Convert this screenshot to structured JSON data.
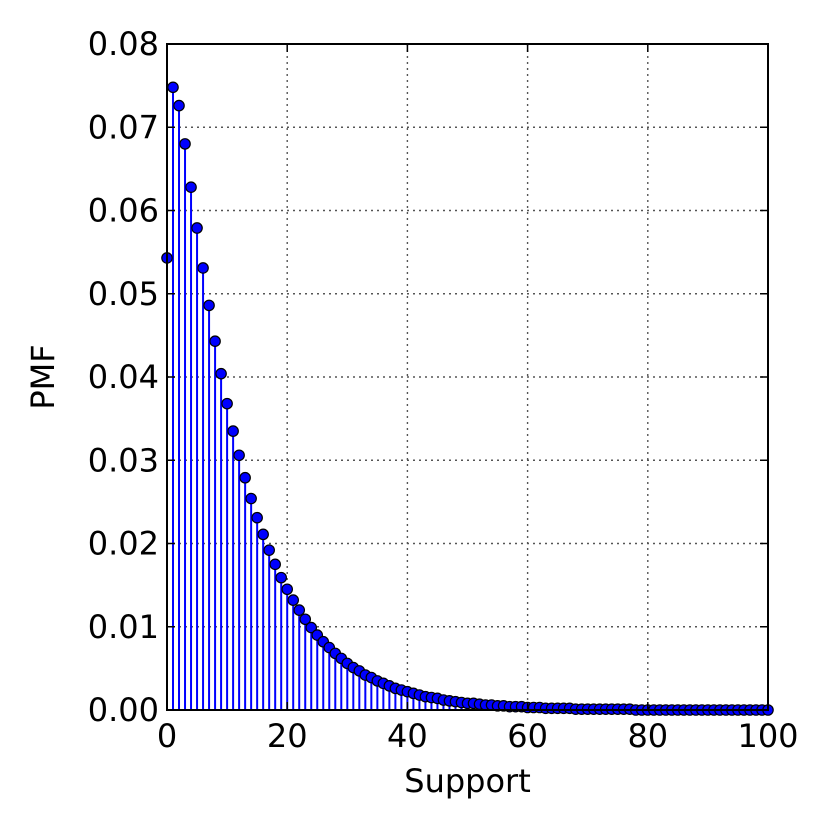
{
  "chart_data": {
    "type": "stem",
    "title": "",
    "xlabel": "Support",
    "ylabel": "PMF",
    "xlim": [
      0,
      100
    ],
    "ylim": [
      0,
      0.08
    ],
    "xticks": [
      "0",
      "20",
      "40",
      "60",
      "80",
      "100"
    ],
    "yticks": [
      "0.00",
      "0.01",
      "0.02",
      "0.03",
      "0.04",
      "0.05",
      "0.06",
      "0.07",
      "0.08"
    ],
    "grid": true,
    "legend": "none",
    "color": "#0000ff",
    "x": [
      0,
      1,
      2,
      3,
      4,
      5,
      6,
      7,
      8,
      9,
      10,
      11,
      12,
      13,
      14,
      15,
      16,
      17,
      18,
      19,
      20,
      21,
      22,
      23,
      24,
      25,
      26,
      27,
      28,
      29,
      30,
      31,
      32,
      33,
      34,
      35,
      36,
      37,
      38,
      39,
      40,
      41,
      42,
      43,
      44,
      45,
      46,
      47,
      48,
      49,
      50,
      51,
      52,
      53,
      54,
      55,
      56,
      57,
      58,
      59,
      60,
      61,
      62,
      63,
      64,
      65,
      66,
      67,
      68,
      69,
      70,
      71,
      72,
      73,
      74,
      75,
      76,
      77,
      78,
      79,
      80,
      81,
      82,
      83,
      84,
      85,
      86,
      87,
      88,
      89,
      90,
      91,
      92,
      93,
      94,
      95,
      96,
      97,
      98,
      99,
      100
    ],
    "y": [
      0.0543,
      0.0748,
      0.0726,
      0.068,
      0.0628,
      0.0579,
      0.0531,
      0.0486,
      0.0443,
      0.0404,
      0.0368,
      0.0335,
      0.0306,
      0.0279,
      0.0254,
      0.0231,
      0.0211,
      0.0192,
      0.0175,
      0.0159,
      0.0145,
      0.0132,
      0.012,
      0.0109,
      0.0099,
      0.009,
      0.0082,
      0.0075,
      0.0068,
      0.0062,
      0.0056,
      0.0051,
      0.0047,
      0.0042,
      0.0039,
      0.0035,
      0.0032,
      0.0029,
      0.0026,
      0.0024,
      0.0022,
      0.002,
      0.0018,
      0.0016,
      0.0015,
      0.0014,
      0.0012,
      0.0011,
      0.001,
      0.0009,
      0.0008,
      0.0008,
      0.0007,
      0.0006,
      0.0006,
      0.0005,
      0.0005,
      0.0004,
      0.0004,
      0.0004,
      0.0003,
      0.0003,
      0.0003,
      0.0002,
      0.0002,
      0.0002,
      0.0002,
      0.0002,
      0.0001,
      0.0001,
      0.0001,
      0.0001,
      0.0001,
      0.0001,
      0.0001,
      0.0001,
      0.0001,
      0.0001,
      0.0,
      0.0,
      0.0,
      0.0,
      0.0,
      0.0,
      0.0,
      0.0,
      0.0,
      0.0,
      0.0,
      0.0,
      0.0,
      0.0,
      0.0,
      0.0,
      0.0,
      0.0,
      0.0,
      0.0,
      0.0,
      0.0,
      0.0
    ]
  }
}
